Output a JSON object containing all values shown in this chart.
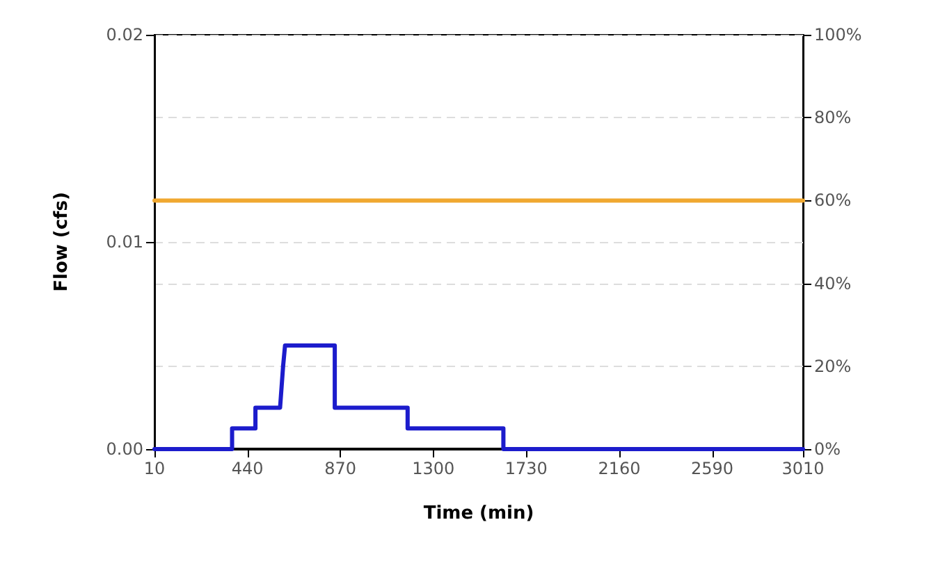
{
  "chart_data": {
    "type": "line",
    "xlabel": "Time (min)",
    "ylabel": "Flow (cfs)",
    "xlim": [
      10,
      3010
    ],
    "xticks": [
      10,
      440,
      870,
      1300,
      1730,
      2160,
      2590,
      3010
    ],
    "ylim": [
      0,
      0.02
    ],
    "yticks": [
      {
        "value": 0,
        "label": "0.00"
      },
      {
        "value": 0.01,
        "label": "0.01"
      },
      {
        "value": 0.02,
        "label": "0.02"
      }
    ],
    "y2lim": [
      0,
      100
    ],
    "y2ticks": [
      {
        "value": 0,
        "label": "0%"
      },
      {
        "value": 20,
        "label": "20%"
      },
      {
        "value": 40,
        "label": "40%"
      },
      {
        "value": 60,
        "label": "60%"
      },
      {
        "value": 80,
        "label": "80%"
      },
      {
        "value": 100,
        "label": "100%"
      }
    ],
    "series": [
      {
        "color": "#1c1ccc",
        "x": [
          10,
          369,
          369,
          477,
          477,
          591,
          605,
          614,
          844,
          844,
          1181,
          1181,
          1624,
          1624,
          3010
        ],
        "values": [
          0,
          0,
          0.001,
          0.001,
          0.002,
          0.002,
          0.004,
          0.005,
          0.005,
          0.002,
          0.002,
          0.001,
          0.001,
          0,
          0
        ]
      },
      {
        "color": "#f0a830",
        "axis": "y2",
        "x": [
          10,
          3010
        ],
        "values": [
          60,
          60
        ]
      }
    ],
    "grid": true,
    "marker": "none",
    "line_style": "solid"
  }
}
